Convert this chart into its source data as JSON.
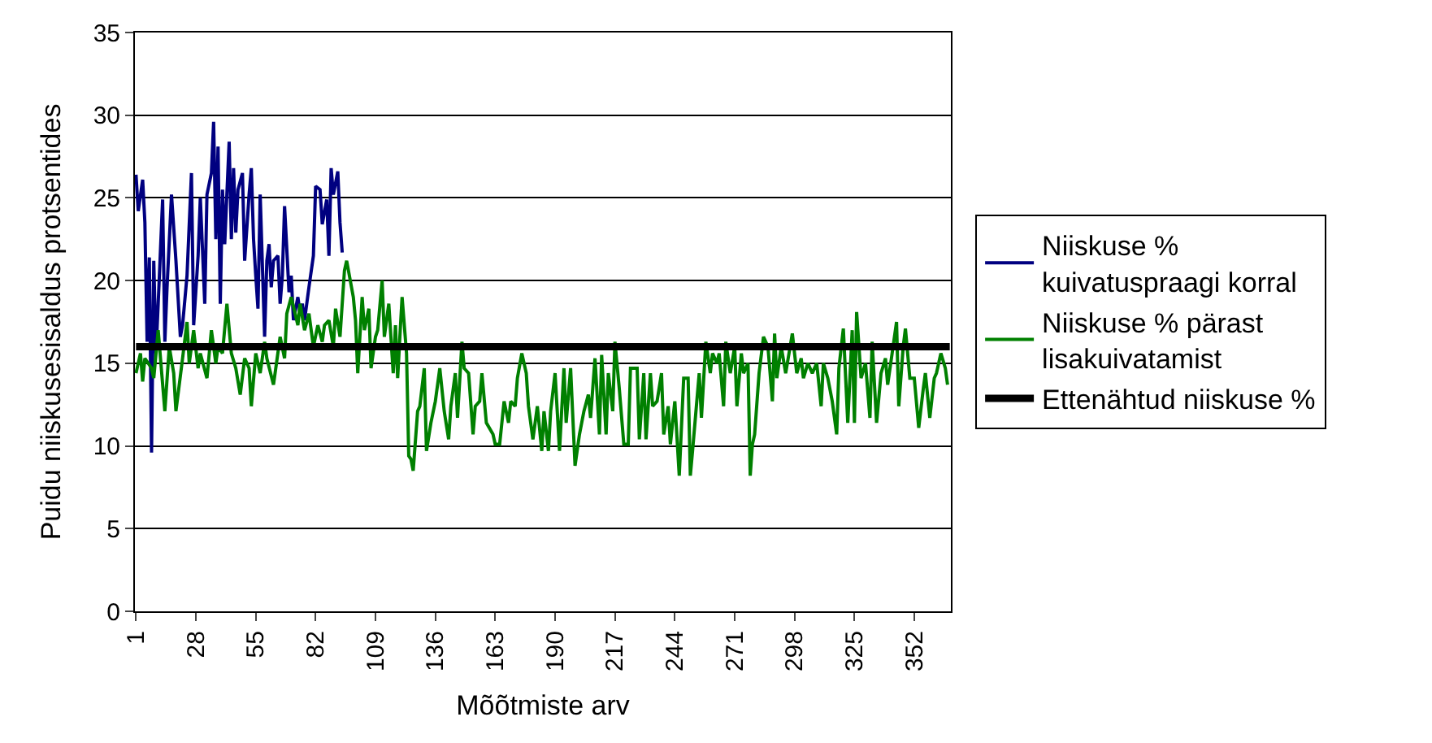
{
  "chart_data": {
    "type": "line",
    "xlabel": "Mõõtmiste arv",
    "ylabel": "Puidu niiskusesisaldus protsentides",
    "xlim": [
      0.5,
      368.5
    ],
    "xticks": [
      1,
      28,
      55,
      82,
      109,
      136,
      163,
      190,
      217,
      244,
      271,
      298,
      325,
      352
    ],
    "ylim": [
      0,
      35
    ],
    "yticks": [
      0,
      5,
      10,
      15,
      20,
      25,
      30,
      35
    ],
    "grid": "y",
    "legend": "right",
    "marker": "none",
    "line_style": "solid",
    "series": [
      {
        "name": "Niiskuse % kuivatuspraagi korral",
        "color": "#000080",
        "x": [
          1,
          2,
          4,
          5,
          6,
          7,
          8,
          9,
          10,
          11,
          13,
          14,
          15,
          17,
          19,
          21,
          22,
          24,
          26,
          27,
          29,
          30,
          32,
          33,
          35,
          36,
          37,
          38,
          39,
          40,
          41,
          43,
          44,
          45,
          46,
          47,
          49,
          50,
          52,
          53,
          54,
          55,
          56,
          57,
          59,
          60,
          61,
          62,
          63,
          65,
          66,
          67,
          68,
          70,
          71,
          72,
          74,
          75,
          76,
          77,
          79,
          81,
          82,
          84,
          85,
          87,
          88,
          89,
          90,
          92,
          93,
          94
        ],
        "values": [
          26.4,
          24.2,
          26.1,
          23.5,
          16.3,
          21.4,
          9.6,
          21.2,
          15.6,
          18.6,
          24.9,
          16.3,
          19.6,
          25.2,
          21.2,
          16.6,
          17.3,
          20.3,
          26.5,
          17.3,
          21.5,
          25.0,
          18.6,
          25.2,
          26.5,
          29.6,
          22.5,
          28.1,
          18.6,
          25.5,
          22.2,
          28.4,
          22.5,
          26.8,
          22.9,
          25.5,
          26.5,
          21.2,
          25.2,
          26.8,
          22.5,
          20.3,
          18.3,
          25.2,
          16.6,
          21.2,
          22.2,
          19.6,
          21.2,
          21.5,
          18.6,
          20.3,
          24.5,
          19.3,
          20.3,
          17.6,
          19.0,
          18.0,
          18.6,
          17.6,
          19.6,
          21.5,
          25.7,
          25.5,
          23.4,
          24.9,
          21.5,
          26.8,
          25.2,
          26.6,
          23.5,
          21.7
        ]
      },
      {
        "name": "Niiskuse % pärast lisakuivatamist",
        "color": "#008000",
        "x": [
          1,
          3,
          4,
          5,
          8,
          9,
          11,
          14,
          16,
          18,
          19,
          22,
          24,
          25,
          27,
          29,
          30,
          33,
          35,
          37,
          38,
          40,
          42,
          44,
          46,
          48,
          50,
          52,
          53,
          55,
          57,
          59,
          60,
          63,
          66,
          68,
          69,
          71,
          74,
          75,
          77,
          79,
          81,
          83,
          85,
          86,
          88,
          90,
          91,
          93,
          95,
          96,
          99,
          100,
          101,
          103,
          104,
          106,
          107,
          109,
          110,
          112,
          113,
          115,
          117,
          118,
          119,
          120,
          121,
          123,
          124,
          125,
          126,
          128,
          129,
          131,
          132,
          134,
          136,
          138,
          140,
          142,
          143,
          145,
          146,
          148,
          149,
          151,
          153,
          154,
          156,
          157,
          159,
          162,
          163,
          165,
          167,
          169,
          170,
          172,
          173,
          175,
          177,
          178,
          180,
          182,
          184,
          185,
          187,
          188,
          190,
          192,
          194,
          195,
          197,
          199,
          201,
          203,
          205,
          206,
          208,
          210,
          211,
          213,
          214,
          216,
          217,
          219,
          221,
          223,
          224,
          227,
          228,
          230,
          231,
          233,
          234,
          236,
          238,
          239,
          241,
          242,
          244,
          246,
          248,
          250,
          251,
          252,
          255,
          256,
          258,
          260,
          261,
          263,
          264,
          266,
          267,
          269,
          271,
          272,
          274,
          275,
          277,
          278,
          279,
          280,
          282,
          284,
          286,
          288,
          289,
          290,
          292,
          294,
          296,
          297,
          299,
          301,
          302,
          304,
          306,
          308,
          310,
          311,
          313,
          315,
          317,
          318,
          320,
          322,
          324,
          325,
          326,
          328,
          330,
          332,
          333,
          335,
          337,
          339,
          340,
          342,
          344,
          345,
          347,
          348,
          350,
          352,
          354,
          356,
          357,
          359,
          361,
          362,
          364,
          366,
          367
        ],
        "values": [
          14.4,
          15.6,
          13.9,
          15.3,
          14.7,
          14.1,
          17.0,
          12.1,
          16.0,
          14.4,
          12.1,
          15.3,
          17.5,
          15.0,
          17.0,
          14.7,
          15.6,
          14.1,
          17.0,
          15.0,
          16.0,
          15.6,
          18.6,
          15.6,
          14.7,
          13.1,
          15.3,
          14.7,
          12.4,
          15.6,
          14.4,
          16.3,
          15.3,
          13.7,
          16.6,
          15.3,
          18.0,
          19.0,
          17.3,
          18.6,
          17.0,
          18.0,
          16.0,
          17.3,
          16.3,
          17.3,
          17.6,
          16.0,
          18.3,
          16.6,
          20.6,
          21.2,
          19.0,
          17.6,
          14.4,
          19.0,
          17.0,
          18.3,
          14.7,
          16.6,
          17.0,
          20.0,
          16.6,
          18.6,
          14.4,
          17.3,
          14.1,
          16.6,
          19.0,
          15.6,
          9.4,
          9.2,
          8.5,
          12.1,
          12.4,
          14.7,
          9.7,
          11.4,
          12.7,
          14.7,
          12.1,
          10.4,
          12.4,
          14.4,
          11.7,
          16.3,
          14.7,
          14.4,
          10.7,
          12.4,
          12.7,
          14.4,
          11.4,
          10.7,
          10.1,
          10.1,
          12.7,
          11.4,
          12.7,
          12.4,
          14.1,
          15.6,
          14.4,
          12.4,
          10.4,
          12.4,
          9.7,
          12.1,
          9.7,
          12.1,
          14.4,
          9.7,
          14.7,
          11.4,
          14.7,
          8.8,
          10.7,
          12.1,
          13.1,
          11.7,
          15.3,
          10.7,
          15.5,
          10.7,
          14.4,
          12.1,
          16.3,
          13.4,
          10.1,
          10.1,
          14.7,
          14.7,
          10.4,
          14.4,
          10.4,
          14.4,
          12.4,
          12.7,
          14.4,
          10.7,
          12.4,
          10.1,
          12.7,
          8.2,
          14.1,
          14.1,
          8.2,
          9.7,
          14.4,
          11.7,
          16.3,
          14.4,
          15.6,
          15.0,
          15.6,
          12.4,
          16.3,
          14.4,
          16.0,
          12.4,
          15.6,
          14.4,
          15.0,
          8.2,
          10.1,
          10.7,
          14.4,
          16.6,
          16.0,
          12.7,
          16.8,
          14.1,
          16.0,
          14.4,
          16.0,
          16.8,
          14.4,
          15.3,
          14.1,
          15.0,
          14.4,
          15.0,
          12.4,
          15.0,
          14.1,
          12.7,
          10.7,
          14.7,
          17.1,
          11.4,
          17.0,
          11.4,
          18.1,
          14.1,
          15.0,
          11.7,
          16.3,
          11.4,
          14.4,
          15.3,
          13.7,
          15.6,
          17.5,
          12.4,
          16.0,
          17.1,
          14.1,
          14.1,
          11.1,
          13.4,
          14.4,
          11.7,
          14.1,
          14.4,
          15.6,
          14.7,
          13.7
        ]
      },
      {
        "name": "Ettenähtud niiskuse %",
        "color": "#000000",
        "x": [
          1,
          368
        ],
        "values": [
          16,
          16
        ]
      }
    ]
  }
}
